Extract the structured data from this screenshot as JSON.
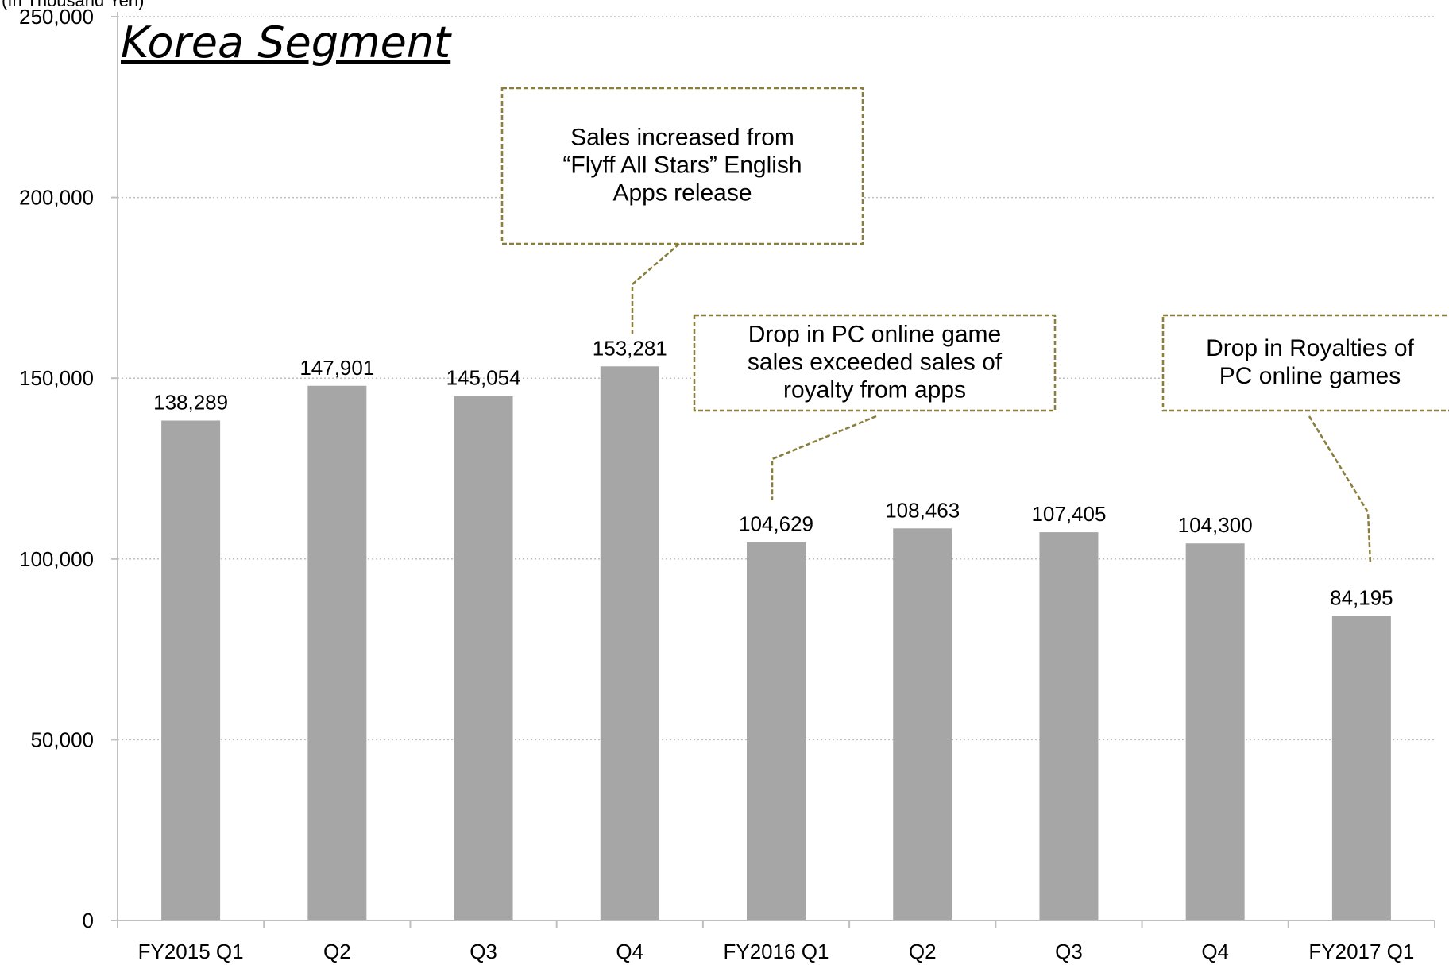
{
  "chart_data": {
    "type": "bar",
    "title": "Korea Segment",
    "unit_label": "(In Thousand Yen)",
    "categories": [
      "FY2015 Q1",
      "Q2",
      "Q3",
      "Q4",
      "FY2016 Q1",
      "Q2",
      "Q3",
      "Q4",
      "FY2017 Q1"
    ],
    "values": [
      138289,
      147901,
      145054,
      153281,
      104629,
      108463,
      107405,
      104300,
      84195
    ],
    "value_labels": [
      "138,289",
      "147,901",
      "145,054",
      "153,281",
      "104,629",
      "108,463",
      "107,405",
      "104,300",
      "84,195"
    ],
    "ylim": [
      0,
      250000
    ],
    "yticks": [
      0,
      50000,
      100000,
      150000,
      200000,
      250000
    ],
    "ytick_labels": [
      "0",
      "50,000",
      "100,000",
      "150,000",
      "200,000",
      "250,000"
    ],
    "grid": true,
    "colors": {
      "bar": "#a6a6a6",
      "callout_border": "#8b7d3a",
      "grid": "#bfbfbf",
      "axis": "#bfbfbf"
    },
    "annotations": [
      {
        "lines": [
          "Sales increased from",
          "“Flyff All Stars” English",
          "Apps release"
        ],
        "target_index": 3
      },
      {
        "lines": [
          "Drop in PC online game",
          "sales exceeded sales of",
          "royalty from  apps"
        ],
        "target_index": 4
      },
      {
        "lines": [
          "Drop in Royalties of",
          "PC online games"
        ],
        "target_index": 8
      }
    ]
  }
}
